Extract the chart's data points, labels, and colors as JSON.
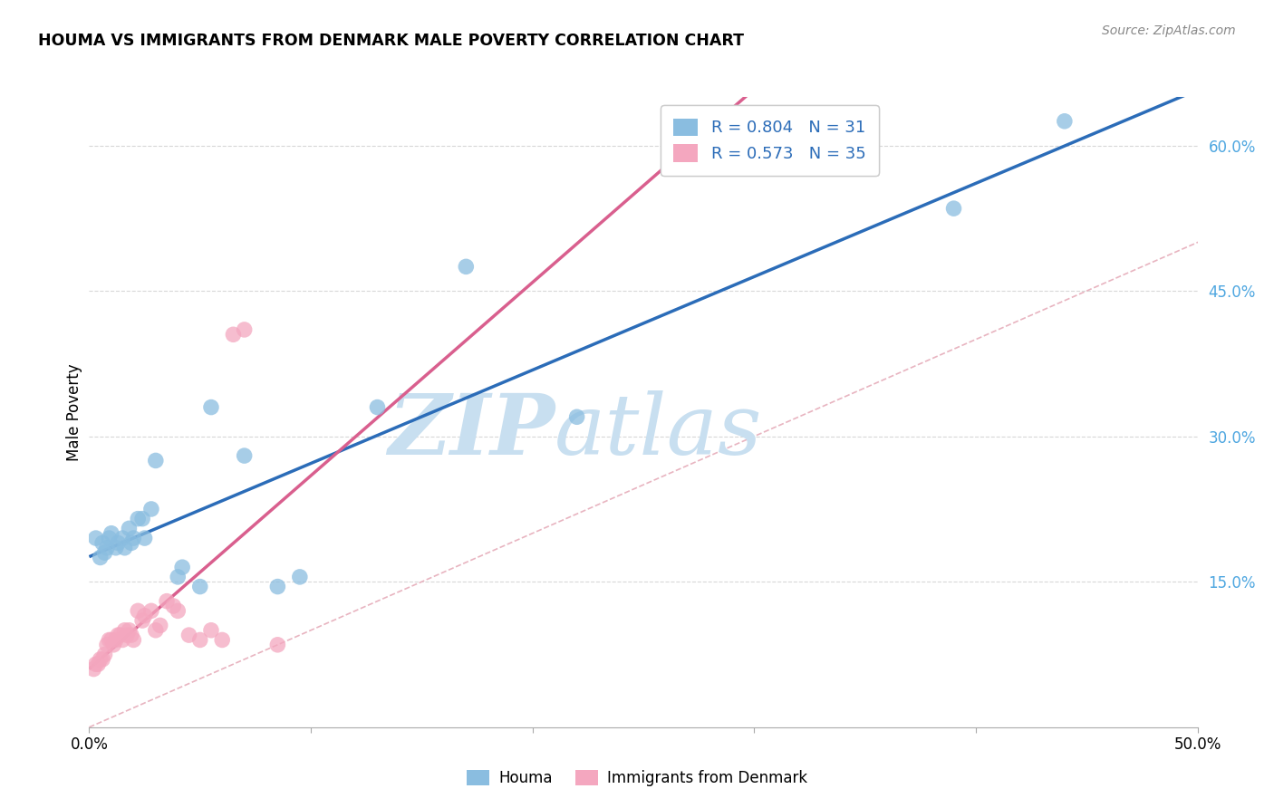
{
  "title": "HOUMA VS IMMIGRANTS FROM DENMARK MALE POVERTY CORRELATION CHART",
  "source": "Source: ZipAtlas.com",
  "ylabel": "Male Poverty",
  "xlim": [
    0.0,
    0.5
  ],
  "ylim": [
    0.0,
    0.65
  ],
  "yticks_right": [
    0.15,
    0.3,
    0.45,
    0.6
  ],
  "ytick_right_labels": [
    "15.0%",
    "30.0%",
    "45.0%",
    "60.0%"
  ],
  "houma_color": "#8abde0",
  "denmark_color": "#f4a7bf",
  "houma_line_color": "#2b6cb8",
  "denmark_line_color": "#d95f8e",
  "diagonal_color": "#e8b4c0",
  "legend_R_houma": "R = 0.804",
  "legend_N_houma": "N = 31",
  "legend_R_denmark": "R = 0.573",
  "legend_N_denmark": "N = 35",
  "houma_x": [
    0.003,
    0.005,
    0.006,
    0.007,
    0.008,
    0.009,
    0.01,
    0.012,
    0.013,
    0.015,
    0.016,
    0.018,
    0.019,
    0.02,
    0.022,
    0.024,
    0.025,
    0.028,
    0.03,
    0.04,
    0.042,
    0.05,
    0.055,
    0.07,
    0.085,
    0.095,
    0.13,
    0.17,
    0.22,
    0.39,
    0.44
  ],
  "houma_y": [
    0.195,
    0.175,
    0.19,
    0.18,
    0.185,
    0.195,
    0.2,
    0.185,
    0.19,
    0.195,
    0.185,
    0.205,
    0.19,
    0.195,
    0.215,
    0.215,
    0.195,
    0.225,
    0.275,
    0.155,
    0.165,
    0.145,
    0.33,
    0.28,
    0.145,
    0.155,
    0.33,
    0.475,
    0.32,
    0.535,
    0.625
  ],
  "denmark_x": [
    0.002,
    0.003,
    0.004,
    0.005,
    0.006,
    0.007,
    0.008,
    0.009,
    0.01,
    0.011,
    0.012,
    0.013,
    0.014,
    0.015,
    0.016,
    0.017,
    0.018,
    0.019,
    0.02,
    0.022,
    0.024,
    0.025,
    0.028,
    0.03,
    0.032,
    0.035,
    0.038,
    0.04,
    0.045,
    0.05,
    0.055,
    0.06,
    0.065,
    0.07,
    0.085
  ],
  "denmark_y": [
    0.06,
    0.065,
    0.065,
    0.07,
    0.07,
    0.075,
    0.085,
    0.09,
    0.09,
    0.085,
    0.09,
    0.095,
    0.095,
    0.09,
    0.1,
    0.095,
    0.1,
    0.095,
    0.09,
    0.12,
    0.11,
    0.115,
    0.12,
    0.1,
    0.105,
    0.13,
    0.125,
    0.12,
    0.095,
    0.09,
    0.1,
    0.09,
    0.405,
    0.41,
    0.085
  ],
  "background_color": "#ffffff",
  "grid_color": "#d8d8d8",
  "watermark_zip": "ZIP",
  "watermark_atlas": "atlas",
  "watermark_color": "#c8dff0"
}
